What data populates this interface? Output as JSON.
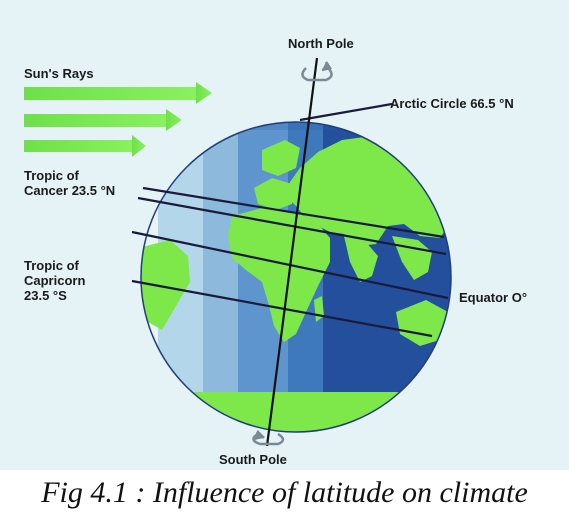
{
  "labels": {
    "north_pole": "North Pole",
    "south_pole": "South Pole",
    "sun_rays": "Sun's Rays",
    "arctic_circle": "Arctic Circle 66.5 °N",
    "tropic_cancer_line1": "Tropic of",
    "tropic_cancer_line2": "Cancer 23.5 °N",
    "tropic_capricorn_line1": "Tropic of",
    "tropic_capricorn_line2": "Capricorn",
    "tropic_capricorn_line3": "23.5 °S",
    "equator": "Equator O°"
  },
  "caption": "Fig 4.1 : Influence of latitude on climate",
  "colors": {
    "background": "#e5f3f7",
    "ray": "#6ee04a",
    "land": "#7ee84a",
    "ocean_light": "#a7cfe6",
    "ocean_mid": "#4d86c4",
    "ocean_dark": "#1f4ea0",
    "line": "#1a1a3a"
  },
  "icons": [
    "sun-ray-arrow",
    "rotation-arrow-icon",
    "globe"
  ]
}
